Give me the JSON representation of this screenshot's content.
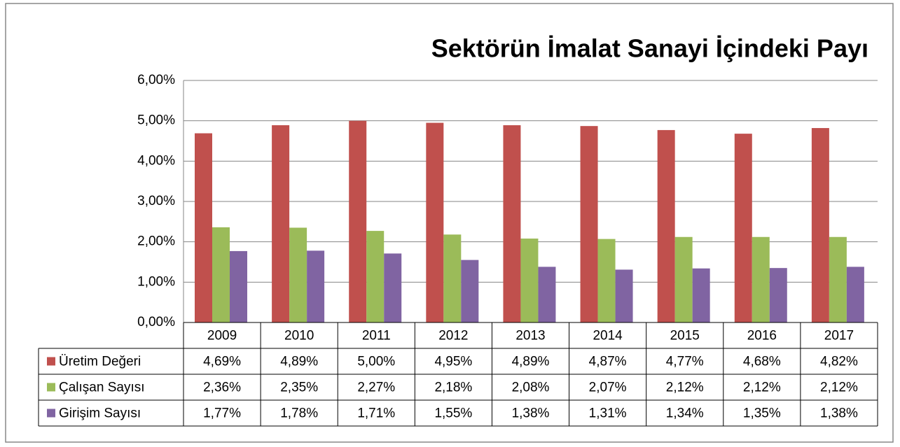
{
  "chart_data": {
    "type": "bar",
    "title": "Sektörün İmalat Sanayi İçindeki Payı",
    "categories": [
      "2009",
      "2010",
      "2011",
      "2012",
      "2013",
      "2014",
      "2015",
      "2016",
      "2017"
    ],
    "series": [
      {
        "name": "Üretim Değeri",
        "color": "#c0504d",
        "values": [
          4.69,
          4.89,
          5.0,
          4.95,
          4.89,
          4.87,
          4.77,
          4.68,
          4.82
        ],
        "value_labels": [
          "4,69%",
          "4,89%",
          "5,00%",
          "4,95%",
          "4,89%",
          "4,87%",
          "4,77%",
          "4,68%",
          "4,82%"
        ]
      },
      {
        "name": "Çalışan Sayısı",
        "color": "#9bbb59",
        "values": [
          2.36,
          2.35,
          2.27,
          2.18,
          2.08,
          2.07,
          2.12,
          2.12,
          2.12
        ],
        "value_labels": [
          "2,36%",
          "2,35%",
          "2,27%",
          "2,18%",
          "2,08%",
          "2,07%",
          "2,12%",
          "2,12%",
          "2,12%"
        ]
      },
      {
        "name": "Girişim Sayısı",
        "color": "#8064a2",
        "values": [
          1.77,
          1.78,
          1.71,
          1.55,
          1.38,
          1.31,
          1.34,
          1.35,
          1.38
        ],
        "value_labels": [
          "1,77%",
          "1,78%",
          "1,71%",
          "1,55%",
          "1,38%",
          "1,31%",
          "1,34%",
          "1,35%",
          "1,38%"
        ]
      }
    ],
    "ylim": [
      0,
      6
    ],
    "yticks": [
      {
        "value": 0,
        "label": "0,00%"
      },
      {
        "value": 1,
        "label": "1,00%"
      },
      {
        "value": 2,
        "label": "2,00%"
      },
      {
        "value": 3,
        "label": "3,00%"
      },
      {
        "value": 4,
        "label": "4,00%"
      },
      {
        "value": 5,
        "label": "5,00%"
      },
      {
        "value": 6,
        "label": "6,00%"
      }
    ],
    "grid": true
  }
}
